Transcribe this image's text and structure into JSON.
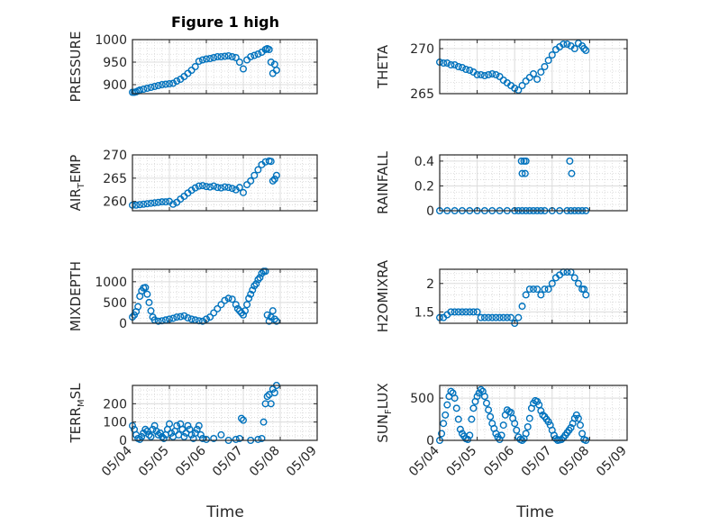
{
  "figure": {
    "title": "Figure 1 high",
    "xlabel": "Time",
    "marker_color": "#0072BD"
  },
  "x_ticks": [
    "05/04",
    "05/05",
    "05/06",
    "05/07",
    "05/08",
    "05/09"
  ],
  "chart_data": [
    {
      "type": "scatter",
      "ylabel": {
        "main": "PRESSURE",
        "sub": ""
      },
      "xlim": [
        0,
        5
      ],
      "ylim": [
        880,
        1000
      ],
      "yticks": [
        900,
        950,
        1000
      ],
      "grid": true,
      "title": "Figure 1 high",
      "x": [
        0.0,
        0.05,
        0.1,
        0.15,
        0.2,
        0.3,
        0.4,
        0.5,
        0.6,
        0.7,
        0.8,
        0.9,
        1.0,
        1.1,
        1.2,
        1.3,
        1.4,
        1.5,
        1.6,
        1.7,
        1.8,
        1.9,
        2.0,
        2.1,
        2.2,
        2.3,
        2.4,
        2.5,
        2.6,
        2.7,
        2.8,
        2.9,
        3.0,
        3.1,
        3.2,
        3.3,
        3.4,
        3.5,
        3.6,
        3.65,
        3.7,
        3.75,
        3.8,
        3.85,
        3.9
      ],
      "y": [
        883,
        883,
        884,
        886,
        888,
        890,
        892,
        894,
        896,
        898,
        900,
        901,
        902,
        903,
        908,
        912,
        918,
        925,
        932,
        940,
        952,
        955,
        957,
        958,
        960,
        962,
        962,
        963,
        964,
        962,
        960,
        950,
        935,
        955,
        962,
        965,
        968,
        972,
        978,
        980,
        978,
        950,
        925,
        945,
        932
      ]
    },
    {
      "type": "scatter",
      "ylabel": {
        "main": "THETA",
        "sub": ""
      },
      "xlim": [
        0,
        5
      ],
      "ylim": [
        265,
        271
      ],
      "yticks": [
        265,
        270
      ],
      "grid": true,
      "x": [
        0.0,
        0.1,
        0.2,
        0.3,
        0.4,
        0.5,
        0.6,
        0.7,
        0.8,
        0.9,
        1.0,
        1.1,
        1.2,
        1.3,
        1.4,
        1.5,
        1.6,
        1.7,
        1.8,
        1.9,
        2.0,
        2.1,
        2.2,
        2.3,
        2.4,
        2.5,
        2.6,
        2.7,
        2.8,
        2.9,
        3.0,
        3.1,
        3.2,
        3.3,
        3.4,
        3.5,
        3.6,
        3.7,
        3.8,
        3.85,
        3.9
      ],
      "y": [
        268.5,
        268.4,
        268.4,
        268.2,
        268.2,
        268.0,
        267.9,
        267.7,
        267.6,
        267.4,
        267.1,
        267.1,
        267.0,
        267.1,
        267.2,
        267.1,
        266.9,
        266.5,
        266.2,
        265.9,
        265.6,
        265.4,
        265.9,
        266.4,
        266.8,
        267.2,
        266.6,
        267.4,
        268.0,
        268.7,
        269.3,
        269.9,
        270.2,
        270.5,
        270.5,
        270.3,
        270.0,
        270.6,
        270.3,
        270.0,
        269.8
      ]
    },
    {
      "type": "scatter",
      "ylabel": {
        "main": "AIR",
        "sub": "T",
        "rest": "EMP"
      },
      "xlim": [
        0,
        5
      ],
      "ylim": [
        258,
        270
      ],
      "yticks": [
        260,
        265,
        270
      ],
      "grid": true,
      "x": [
        0.0,
        0.1,
        0.2,
        0.3,
        0.4,
        0.5,
        0.6,
        0.7,
        0.8,
        0.9,
        1.0,
        1.1,
        1.2,
        1.3,
        1.4,
        1.5,
        1.6,
        1.7,
        1.8,
        1.9,
        2.0,
        2.1,
        2.2,
        2.3,
        2.4,
        2.5,
        2.6,
        2.7,
        2.8,
        2.9,
        3.0,
        3.1,
        3.2,
        3.3,
        3.4,
        3.5,
        3.6,
        3.7,
        3.75,
        3.8,
        3.85,
        3.9
      ],
      "y": [
        259.2,
        259.2,
        259.3,
        259.4,
        259.5,
        259.6,
        259.7,
        259.8,
        259.9,
        259.9,
        260.0,
        259.4,
        259.8,
        260.5,
        261.1,
        261.8,
        262.4,
        262.9,
        263.3,
        263.4,
        263.2,
        263.1,
        263.3,
        263.0,
        262.9,
        263.1,
        263.0,
        262.8,
        262.5,
        263.0,
        261.9,
        263.6,
        264.4,
        265.6,
        266.8,
        267.9,
        268.5,
        268.7,
        268.6,
        264.4,
        264.8,
        265.6
      ]
    },
    {
      "type": "scatter",
      "ylabel": {
        "main": "RAINFALL",
        "sub": ""
      },
      "xlim": [
        0,
        5
      ],
      "ylim": [
        0,
        0.45
      ],
      "yticks": [
        0,
        0.2,
        0.4
      ],
      "grid": true,
      "x": [
        0.0,
        0.2,
        0.4,
        0.6,
        0.8,
        1.0,
        1.2,
        1.4,
        1.6,
        1.8,
        2.0,
        2.1,
        2.2,
        2.3,
        2.4,
        2.5,
        2.6,
        2.7,
        2.8,
        3.0,
        3.2,
        3.4,
        3.5,
        3.6,
        3.7,
        3.8,
        3.9,
        2.18,
        2.2,
        2.25,
        2.28,
        2.3,
        3.47,
        3.52
      ],
      "y": [
        0,
        0,
        0,
        0,
        0,
        0,
        0,
        0,
        0,
        0,
        0,
        0,
        0,
        0,
        0,
        0,
        0,
        0,
        0,
        0,
        0,
        0,
        0,
        0,
        0,
        0,
        0,
        0.4,
        0.3,
        0.4,
        0.3,
        0.4,
        0.4,
        0.3
      ]
    },
    {
      "type": "scatter",
      "ylabel": {
        "main": "MIXDEPTH",
        "sub": ""
      },
      "xlim": [
        0,
        5
      ],
      "ylim": [
        0,
        1300
      ],
      "yticks": [
        0,
        500,
        1000
      ],
      "grid": true,
      "x": [
        0.0,
        0.05,
        0.1,
        0.15,
        0.2,
        0.25,
        0.3,
        0.35,
        0.4,
        0.45,
        0.5,
        0.55,
        0.6,
        0.7,
        0.8,
        0.9,
        1.0,
        1.1,
        1.2,
        1.3,
        1.4,
        1.5,
        1.6,
        1.7,
        1.8,
        1.9,
        2.0,
        2.1,
        2.2,
        2.3,
        2.4,
        2.5,
        2.6,
        2.7,
        2.8,
        2.85,
        2.9,
        2.95,
        3.0,
        3.05,
        3.1,
        3.15,
        3.2,
        3.25,
        3.3,
        3.35,
        3.4,
        3.45,
        3.5,
        3.55,
        3.6,
        3.65,
        3.7,
        3.75,
        3.8,
        3.85,
        3.9
      ],
      "y": [
        150,
        200,
        280,
        400,
        650,
        780,
        850,
        860,
        700,
        500,
        300,
        150,
        80,
        50,
        60,
        80,
        100,
        120,
        150,
        160,
        180,
        130,
        100,
        80,
        60,
        50,
        100,
        150,
        250,
        350,
        450,
        550,
        600,
        580,
        450,
        350,
        300,
        250,
        200,
        300,
        450,
        600,
        700,
        800,
        900,
        950,
        1050,
        1100,
        1200,
        1250,
        1250,
        200,
        50,
        150,
        300,
        100,
        50
      ]
    },
    {
      "type": "scatter",
      "ylabel": {
        "main": "H2OMIXRA",
        "sub": ""
      },
      "xlim": [
        0,
        5
      ],
      "ylim": [
        1.3,
        2.25
      ],
      "yticks": [
        1.5,
        2
      ],
      "grid": true,
      "x": [
        0.0,
        0.1,
        0.2,
        0.3,
        0.4,
        0.5,
        0.6,
        0.7,
        0.8,
        0.9,
        1.0,
        1.1,
        1.2,
        1.3,
        1.4,
        1.5,
        1.6,
        1.7,
        1.8,
        1.9,
        2.0,
        2.1,
        2.2,
        2.3,
        2.4,
        2.5,
        2.6,
        2.7,
        2.8,
        2.9,
        3.0,
        3.1,
        3.2,
        3.3,
        3.4,
        3.5,
        3.6,
        3.7,
        3.8,
        3.85,
        3.9
      ],
      "y": [
        1.4,
        1.4,
        1.45,
        1.5,
        1.5,
        1.5,
        1.5,
        1.5,
        1.5,
        1.5,
        1.5,
        1.4,
        1.4,
        1.4,
        1.4,
        1.4,
        1.4,
        1.4,
        1.4,
        1.4,
        1.3,
        1.4,
        1.6,
        1.8,
        1.9,
        1.9,
        1.9,
        1.8,
        1.9,
        1.9,
        2.0,
        2.1,
        2.15,
        2.2,
        2.2,
        2.2,
        2.1,
        2.0,
        1.9,
        1.9,
        1.8
      ]
    },
    {
      "type": "scatter",
      "ylabel": {
        "main": "TERR",
        "sub": "M",
        "rest": "SL"
      },
      "xlim": [
        0,
        5
      ],
      "ylim": [
        0,
        300
      ],
      "yticks": [
        0,
        100,
        200
      ],
      "grid": true,
      "x": [
        0.0,
        0.05,
        0.1,
        0.15,
        0.2,
        0.25,
        0.3,
        0.35,
        0.4,
        0.45,
        0.5,
        0.55,
        0.6,
        0.65,
        0.7,
        0.75,
        0.8,
        0.85,
        0.9,
        0.95,
        1.0,
        1.05,
        1.1,
        1.15,
        1.2,
        1.25,
        1.3,
        1.35,
        1.4,
        1.45,
        1.5,
        1.55,
        1.6,
        1.65,
        1.7,
        1.75,
        1.8,
        1.85,
        1.9,
        2.0,
        2.2,
        2.4,
        2.6,
        2.8,
        2.9,
        2.95,
        3.0,
        3.2,
        3.4,
        3.5,
        3.55,
        3.6,
        3.65,
        3.7,
        3.75,
        3.8,
        3.85,
        3.9
      ],
      "y": [
        80,
        60,
        30,
        10,
        5,
        20,
        40,
        60,
        50,
        30,
        20,
        60,
        80,
        50,
        30,
        40,
        20,
        10,
        30,
        60,
        90,
        40,
        20,
        50,
        80,
        30,
        90,
        60,
        20,
        40,
        80,
        60,
        30,
        10,
        40,
        60,
        80,
        30,
        10,
        5,
        10,
        30,
        0,
        5,
        10,
        120,
        110,
        0,
        5,
        10,
        100,
        200,
        240,
        250,
        200,
        280,
        260,
        300
      ]
    },
    {
      "type": "scatter",
      "ylabel": {
        "main": "SUN",
        "sub": "F",
        "rest": "LUX"
      },
      "xlim": [
        0,
        5
      ],
      "ylim": [
        0,
        650
      ],
      "yticks": [
        0,
        500
      ],
      "grid": true,
      "x": [
        0.0,
        0.05,
        0.1,
        0.15,
        0.2,
        0.25,
        0.3,
        0.35,
        0.4,
        0.45,
        0.5,
        0.55,
        0.6,
        0.65,
        0.7,
        0.75,
        0.8,
        0.85,
        0.9,
        0.95,
        1.0,
        1.05,
        1.1,
        1.15,
        1.2,
        1.25,
        1.3,
        1.35,
        1.4,
        1.45,
        1.5,
        1.55,
        1.6,
        1.65,
        1.7,
        1.75,
        1.8,
        1.85,
        1.9,
        1.95,
        2.0,
        2.05,
        2.1,
        2.15,
        2.2,
        2.25,
        2.3,
        2.35,
        2.4,
        2.45,
        2.5,
        2.55,
        2.6,
        2.65,
        2.7,
        2.75,
        2.8,
        2.85,
        2.9,
        2.95,
        3.0,
        3.05,
        3.1,
        3.15,
        3.2,
        3.25,
        3.3,
        3.35,
        3.4,
        3.45,
        3.5,
        3.55,
        3.6,
        3.65,
        3.7,
        3.75,
        3.8,
        3.85,
        3.9
      ],
      "y": [
        0,
        80,
        200,
        300,
        420,
        520,
        580,
        560,
        500,
        380,
        250,
        130,
        80,
        50,
        20,
        10,
        60,
        250,
        380,
        460,
        520,
        560,
        600,
        580,
        520,
        440,
        360,
        280,
        200,
        140,
        80,
        40,
        10,
        60,
        180,
        300,
        360,
        340,
        330,
        260,
        200,
        120,
        40,
        10,
        0,
        20,
        80,
        160,
        260,
        380,
        440,
        470,
        460,
        420,
        350,
        300,
        280,
        250,
        220,
        180,
        120,
        60,
        20,
        0,
        5,
        10,
        30,
        60,
        90,
        120,
        150,
        200,
        260,
        300,
        260,
        180,
        80,
        10,
        0
      ]
    }
  ]
}
